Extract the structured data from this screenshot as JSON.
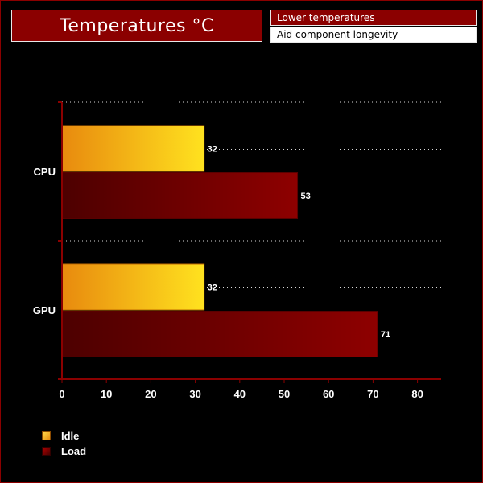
{
  "header": {
    "title": "Temperatures °C",
    "note_1": "Lower temperatures",
    "note_2": "Aid component longevity"
  },
  "colors": {
    "title_bg": "#8b0000",
    "idle_start": "#e88a0e",
    "idle_end": "#ffe21f",
    "load_start": "#4d0000",
    "load_end": "#8e0000",
    "axis": "#8b0000",
    "text": "#ffffff"
  },
  "chart_data": {
    "type": "bar",
    "orientation": "horizontal",
    "categories": [
      "CPU",
      "GPU"
    ],
    "series": [
      {
        "name": "Idle",
        "values": [
          32,
          32
        ]
      },
      {
        "name": "Load",
        "values": [
          53,
          71
        ]
      }
    ],
    "xlim": [
      0,
      85
    ],
    "xticks": [
      0,
      10,
      20,
      30,
      40,
      50,
      60,
      70,
      80
    ],
    "grid": "dotted",
    "legend_position": "bottom-left"
  }
}
